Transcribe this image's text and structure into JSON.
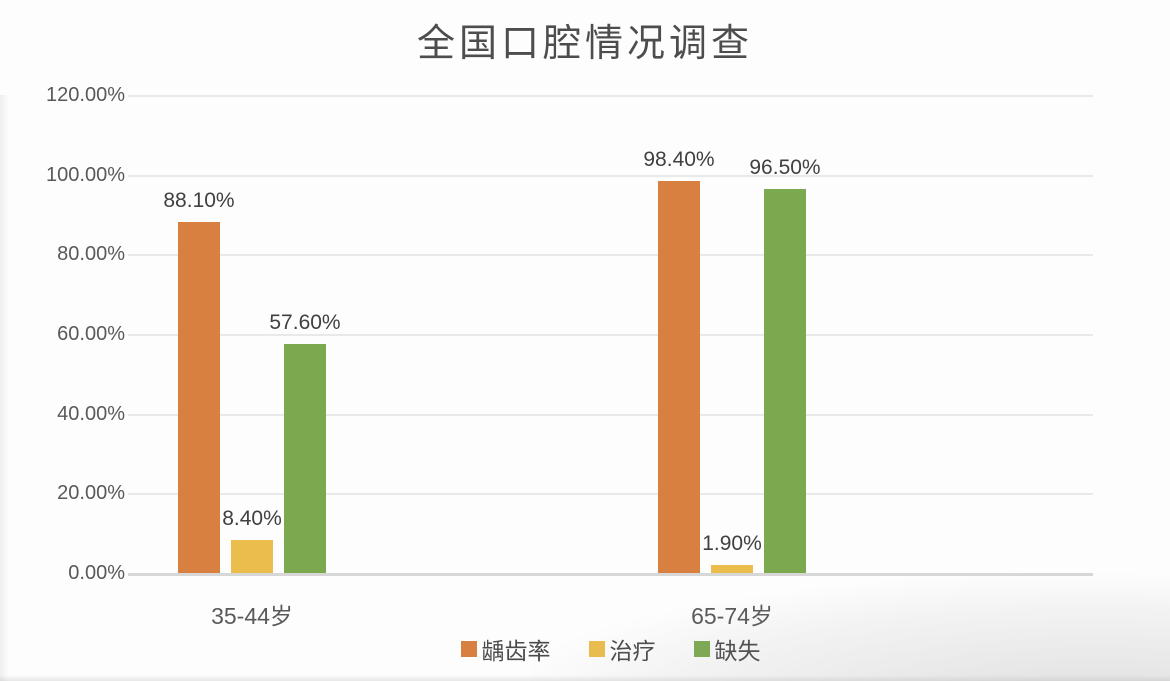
{
  "chart_data": {
    "type": "bar",
    "title": "全国口腔情况调查",
    "categories": [
      "35-44岁",
      "65-74岁"
    ],
    "series": [
      {
        "name": "龋齿率",
        "color": "#d8803f",
        "values": [
          88.1,
          98.4
        ],
        "labels": [
          "88.10%",
          "98.40%"
        ]
      },
      {
        "name": "治疗",
        "color": "#eabd4d",
        "values": [
          8.4,
          1.9
        ],
        "labels": [
          "8.40%",
          "1.90%"
        ]
      },
      {
        "name": "缺失",
        "color": "#7ca950",
        "values": [
          57.6,
          96.5
        ],
        "labels": [
          "57.60%",
          "96.50%"
        ]
      }
    ],
    "y_axis": {
      "min": 0,
      "max": 120,
      "step": 20,
      "ticks": [
        "0.00%",
        "20.00%",
        "40.00%",
        "60.00%",
        "80.00%",
        "100.00%",
        "120.00%"
      ]
    },
    "grid": true,
    "legend_position": "bottom",
    "colors": {
      "grid_line": "#e9e9e9",
      "axis_line": "#d7d7d7",
      "title_text": "#4d4d4d",
      "axis_text": "#595959",
      "label_text": "#404040"
    }
  }
}
